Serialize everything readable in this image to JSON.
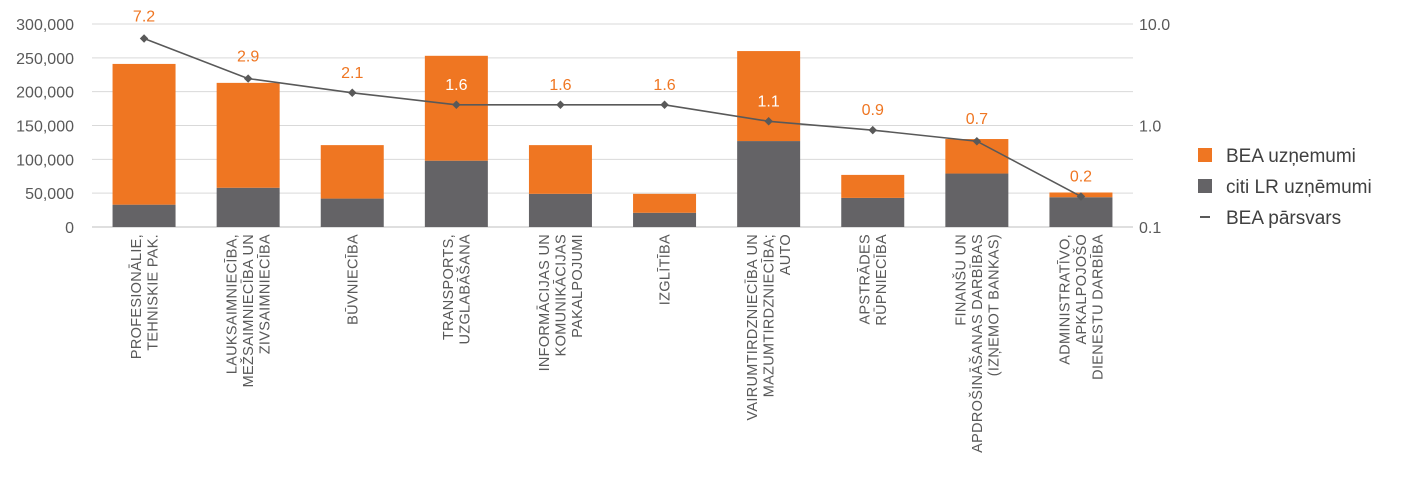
{
  "chart_data": {
    "type": "bar",
    "stacked": true,
    "categories": [
      [
        "PROFESIONĀLIE,",
        "TEHNISKIE PAK."
      ],
      [
        "LAUKSAIMNIECĪBA,",
        "MEŽSAIMNIECĪBA UN",
        "ZIVSAIMNIECĪBA"
      ],
      [
        "BŪVNIECĪBA"
      ],
      [
        "TRANSPORTS,",
        "UZGLABĀŠANA"
      ],
      [
        "INFORMĀCIJAS UN",
        "KOMUNIKĀCIJAS",
        "PAKALPOJUMI"
      ],
      [
        "IZGLĪTĪBA"
      ],
      [
        "VAIRUMTIRDZNIECĪBA UN",
        "MAZUMTIRDZNIECĪBA;",
        "AUTO"
      ],
      [
        "APSTRĀDES",
        "RŪPNIECĪBA"
      ],
      [
        "FINANŠU UN",
        "APDROŠINĀŠANAS DARBĪBAS",
        "(IZŅEMOT BANKAS)"
      ],
      [
        "ADMINISTRATĪVO,",
        "APKALPOJOŠO",
        "DIENESTU DARBĪBA"
      ]
    ],
    "series": [
      {
        "name": "citi LR uzņēmumi",
        "color": "#646366",
        "values": [
          33000,
          58000,
          42000,
          98000,
          49000,
          21000,
          127000,
          43000,
          79000,
          44000
        ]
      },
      {
        "name": "BEA uzņemumi",
        "color": "#EF7622",
        "values": [
          208000,
          155000,
          79000,
          155000,
          72000,
          28000,
          133000,
          34000,
          51000,
          7000
        ]
      },
      {
        "name": "BEA pārsvars",
        "color": "#595959",
        "axis": "right",
        "line": true,
        "values": [
          7.2,
          2.9,
          2.1,
          1.6,
          1.6,
          1.6,
          1.1,
          0.9,
          0.7,
          0.2
        ],
        "labels": [
          "7.2",
          "2.9",
          "2.1",
          "1.6",
          "1.6",
          "1.6",
          "1.1",
          "0.9",
          "0.7",
          "0.2"
        ]
      }
    ],
    "left_axis": {
      "ylim": [
        0,
        300000
      ],
      "ticks": [
        0,
        50000,
        100000,
        150000,
        200000,
        250000,
        300000
      ],
      "tick_labels": [
        "0",
        "50,000",
        "100,000",
        "150,000",
        "200,000",
        "250,000",
        "300,000"
      ]
    },
    "right_axis": {
      "scale": "log",
      "ylim": [
        0.1,
        10
      ],
      "ticks": [
        0.1,
        1,
        10
      ],
      "tick_labels": [
        "0.1",
        "1.0",
        "10.0"
      ]
    },
    "grid": true,
    "legend_position": "right",
    "legend": [
      {
        "label": "BEA uzņemumi",
        "marker": "square",
        "color": "#EF7622"
      },
      {
        "label": "citi LR uzņēmumi",
        "marker": "square",
        "color": "#646366"
      },
      {
        "label": "BEA pārsvars",
        "marker": "line",
        "color": "#595959"
      }
    ],
    "data_label_color": "#EF7622"
  }
}
